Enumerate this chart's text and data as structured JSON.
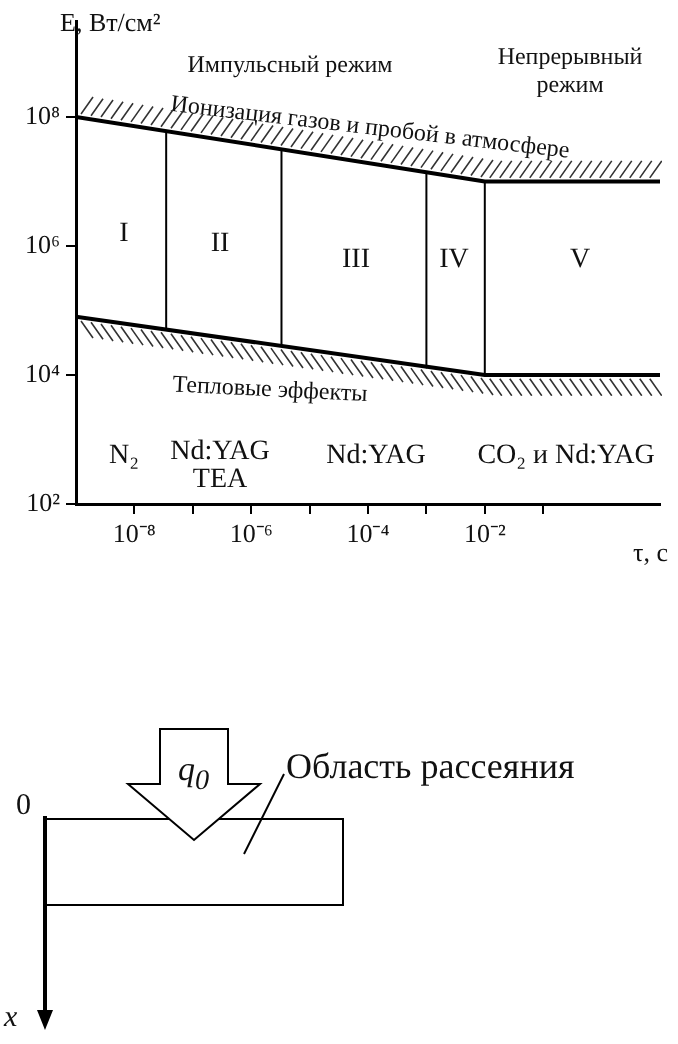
{
  "chart_data": [
    {
      "type": "line",
      "xlabel": "τ, с",
      "ylabel": "E, Вт/см²",
      "log": "xy",
      "grid": false,
      "legend": false,
      "xlim": [
        1e-09,
        10
      ],
      "ylim": [
        100,
        3000000000.0
      ],
      "xticks": [
        {
          "value": 1e-08,
          "label": "10⁻⁸"
        },
        {
          "value": 1e-07,
          "label": null
        },
        {
          "value": 1e-06,
          "label": "10⁻⁶"
        },
        {
          "value": 1e-05,
          "label": null
        },
        {
          "value": 0.0001,
          "label": "10⁻⁴"
        },
        {
          "value": 0.001,
          "label": null
        },
        {
          "value": 0.01,
          "label": "10⁻²"
        },
        {
          "value": 0.1,
          "label": null
        }
      ],
      "yticks": [
        {
          "value": 100,
          "label": "10²"
        },
        {
          "value": 10000.0,
          "label": "10⁴"
        },
        {
          "value": 1000000.0,
          "label": "10⁶"
        },
        {
          "value": 100000000.0,
          "label": "10⁸"
        }
      ],
      "series": [
        {
          "color": "#000000",
          "x": [
            1e-09,
            0.01,
            10
          ],
          "values": [
            100000000.0,
            10000000.0,
            10000000.0
          ]
        },
        {
          "color": "#000000",
          "x": [
            1e-09,
            0.01,
            10
          ],
          "values": [
            80000.0,
            10000.0,
            10000.0
          ]
        },
        {
          "color": "#000000",
          "x": [
            3.5e-08,
            3.5e-08
          ],
          "values": [
            60000000.0,
            50000.0
          ]
        },
        {
          "color": "#000000",
          "x": [
            3.3e-06,
            3.3e-06
          ],
          "values": [
            30000000.0,
            30000.0
          ]
        },
        {
          "color": "#000000",
          "x": [
            0.001,
            0.001
          ],
          "values": [
            14000000.0,
            13000.0
          ]
        },
        {
          "color": "#000000",
          "x": [
            0.01,
            0.01
          ],
          "values": [
            10000000.0,
            10000.0
          ]
        }
      ],
      "annotations": [
        "Импульсный режим",
        "Непрерывный\nрежим",
        "Ионизация газов и пробой в атмосфере",
        "Тепловые эффекты",
        "I",
        "II",
        "III",
        "IV",
        "V",
        "N₂",
        "Nd:YAG\nTEA",
        "Nd:YAG",
        "CO₂ и Nd:YAG"
      ]
    },
    {
      "type": "other",
      "annotations": [
        "q$_{0}$",
        "Область рассеяния",
        "0",
        "x"
      ]
    }
  ]
}
